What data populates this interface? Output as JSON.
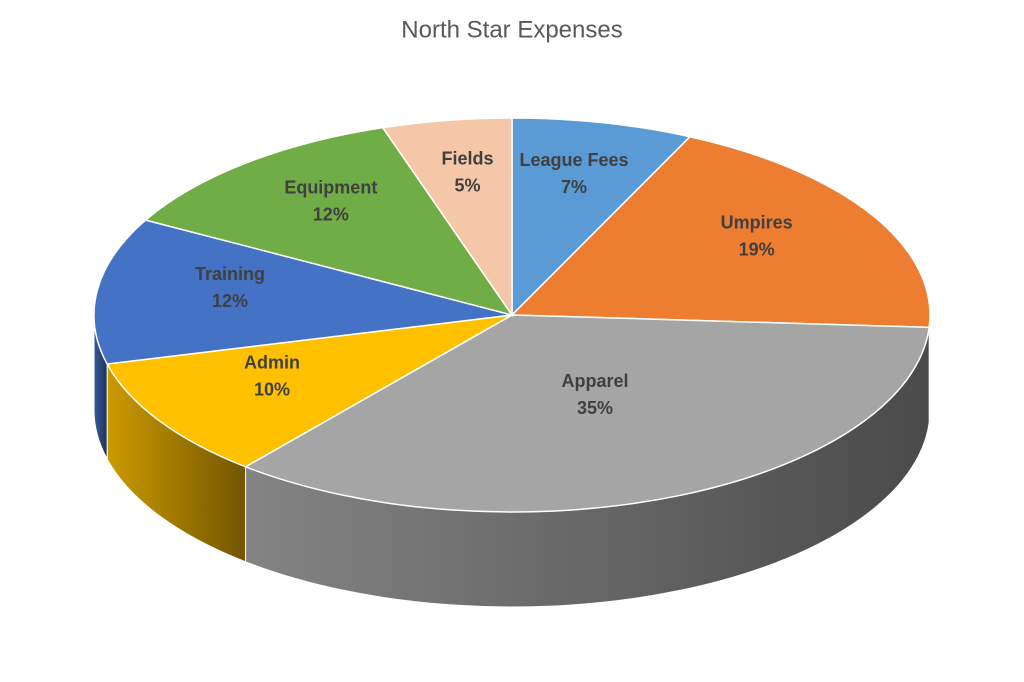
{
  "chart_data": {
    "type": "pie",
    "title": "North Star Expenses",
    "categories": [
      "League Fees",
      "Umpires",
      "Apparel",
      "Admin",
      "Training",
      "Equipment",
      "Fields"
    ],
    "values": [
      7,
      19,
      35,
      10,
      12,
      12,
      5
    ],
    "value_labels": [
      "7%",
      "19%",
      "35%",
      "10%",
      "12%",
      "12%",
      "5%"
    ],
    "colors": [
      "#5b9bd5",
      "#ed7d31",
      "#a5a5a5",
      "#ffc000",
      "#4472c4",
      "#70ad47",
      "#f4c7a9"
    ]
  }
}
